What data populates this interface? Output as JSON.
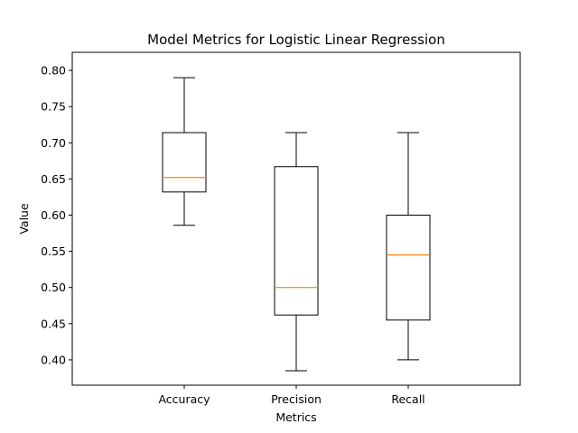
{
  "chart_data": {
    "type": "box",
    "title": "Model Metrics for Logistic Linear Regression",
    "xlabel": "Metrics",
    "ylabel": "Value",
    "ylim": [
      0.365,
      0.825
    ],
    "y_ticks": [
      "0.40",
      "0.45",
      "0.50",
      "0.55",
      "0.60",
      "0.65",
      "0.70",
      "0.75",
      "0.80"
    ],
    "grid": false,
    "categories": [
      "Accuracy",
      "Precision",
      "Recall"
    ],
    "boxes": [
      {
        "name": "Accuracy",
        "whisker_low": 0.586,
        "q1": 0.632,
        "median": 0.652,
        "q3": 0.714,
        "whisker_high": 0.79
      },
      {
        "name": "Precision",
        "whisker_low": 0.385,
        "q1": 0.462,
        "median": 0.5,
        "q3": 0.667,
        "whisker_high": 0.714
      },
      {
        "name": "Recall",
        "whisker_low": 0.4,
        "q1": 0.455,
        "median": 0.545,
        "q3": 0.6,
        "whisker_high": 0.714
      }
    ],
    "colors": {
      "box": "#000000",
      "median": "#ff7f0e"
    }
  }
}
